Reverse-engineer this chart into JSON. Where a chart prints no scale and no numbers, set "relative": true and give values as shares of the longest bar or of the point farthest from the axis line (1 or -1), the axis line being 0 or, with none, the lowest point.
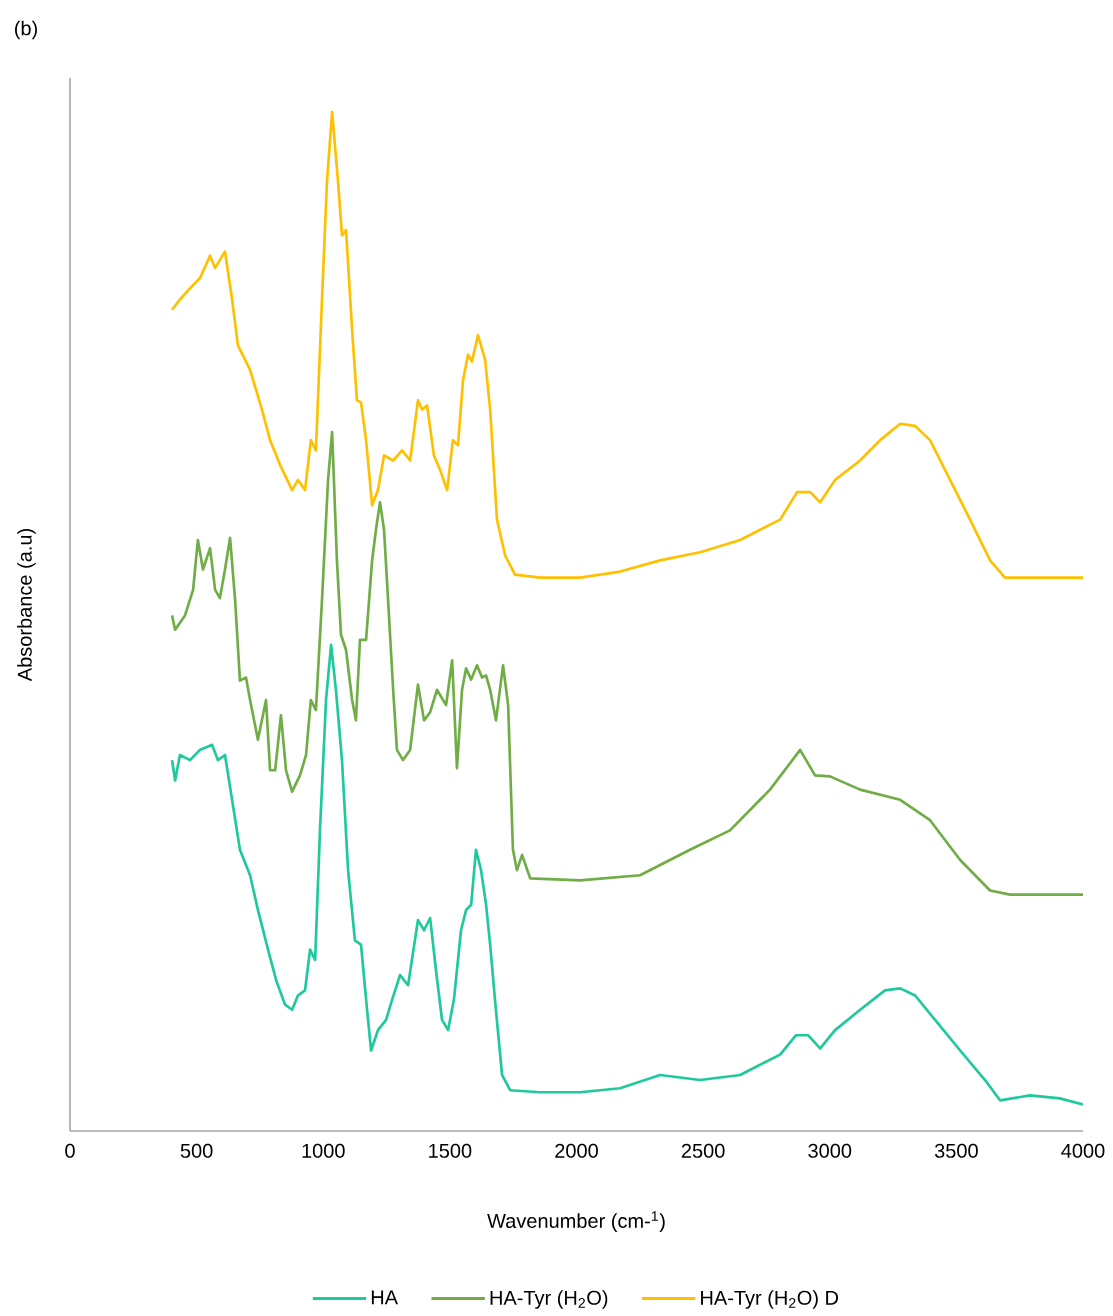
{
  "chart_data": {
    "type": "line",
    "title": "(b)",
    "xlabel": "Wavenumber (cm-$^{1}$)",
    "ylabel": "Absorbance (a.u)",
    "relative": true,
    "xlim": [
      0,
      4000
    ],
    "xticks": [
      0,
      500,
      1000,
      1500,
      2000,
      2500,
      3000,
      3500,
      4000
    ],
    "grid": false,
    "legend": "bottom",
    "marker": "none",
    "line_style": "solid",
    "series": [
      {
        "name": "HA",
        "color": "#1fc99c",
        "x": [
          403,
          415,
          434,
          474,
          513,
          561,
          584,
          612,
          640,
          671,
          711,
          742,
          782,
          814,
          849,
          877,
          900,
          928,
          948,
          968,
          987,
          1011,
          1031,
          1050,
          1074,
          1098,
          1125,
          1149,
          1173,
          1189,
          1216,
          1248,
          1272,
          1303,
          1335,
          1374,
          1398,
          1422,
          1445,
          1469,
          1493,
          1516,
          1544,
          1564,
          1584,
          1603,
          1623,
          1643,
          1659,
          1678,
          1706,
          1738,
          1856,
          2014,
          2172,
          2330,
          2488,
          2646,
          2804,
          2867,
          2914,
          2962,
          3021,
          3120,
          3218,
          3278,
          3337,
          3416,
          3515,
          3613,
          3673,
          3791,
          3909,
          4000
        ],
        "values": [
          0.364,
          0.344,
          0.369,
          0.364,
          0.374,
          0.379,
          0.364,
          0.369,
          0.325,
          0.276,
          0.251,
          0.217,
          0.178,
          0.148,
          0.124,
          0.119,
          0.133,
          0.138,
          0.178,
          0.168,
          0.295,
          0.423,
          0.477,
          0.433,
          0.364,
          0.256,
          0.187,
          0.183,
          0.119,
          0.079,
          0.099,
          0.109,
          0.129,
          0.153,
          0.143,
          0.207,
          0.197,
          0.209,
          0.158,
          0.109,
          0.099,
          0.129,
          0.197,
          0.217,
          0.222,
          0.276,
          0.256,
          0.222,
          0.183,
          0.129,
          0.055,
          0.04,
          0.038,
          0.038,
          0.042,
          0.055,
          0.05,
          0.055,
          0.075,
          0.094,
          0.094,
          0.081,
          0.099,
          0.119,
          0.138,
          0.14,
          0.133,
          0.109,
          0.079,
          0.05,
          0.03,
          0.035,
          0.032,
          0.026
        ]
      },
      {
        "name": "HA-Tyr (H$_{2}$O)",
        "color": "#70ad47",
        "x": [
          403,
          415,
          454,
          486,
          505,
          525,
          553,
          573,
          592,
          612,
          632,
          652,
          671,
          695,
          711,
          742,
          774,
          790,
          810,
          833,
          853,
          877,
          908,
          932,
          951,
          971,
          995,
          1019,
          1035,
          1054,
          1070,
          1090,
          1114,
          1129,
          1145,
          1169,
          1193,
          1208,
          1224,
          1240,
          1256,
          1276,
          1291,
          1315,
          1343,
          1374,
          1398,
          1422,
          1449,
          1485,
          1509,
          1528,
          1548,
          1564,
          1584,
          1607,
          1627,
          1643,
          1659,
          1682,
          1710,
          1730,
          1749,
          1765,
          1785,
          1817,
          2014,
          2251,
          2448,
          2606,
          2764,
          2883,
          2942,
          3001,
          3120,
          3278,
          3396,
          3515,
          3633,
          3712,
          4000
        ],
        "values": [
          0.506,
          0.492,
          0.506,
          0.531,
          0.58,
          0.551,
          0.572,
          0.531,
          0.523,
          0.551,
          0.582,
          0.521,
          0.442,
          0.445,
          0.423,
          0.384,
          0.423,
          0.354,
          0.354,
          0.408,
          0.354,
          0.333,
          0.349,
          0.369,
          0.423,
          0.413,
          0.521,
          0.639,
          0.686,
          0.56,
          0.487,
          0.472,
          0.423,
          0.403,
          0.482,
          0.482,
          0.56,
          0.59,
          0.617,
          0.59,
          0.521,
          0.433,
          0.374,
          0.364,
          0.374,
          0.438,
          0.403,
          0.411,
          0.433,
          0.418,
          0.462,
          0.356,
          0.433,
          0.454,
          0.443,
          0.457,
          0.445,
          0.447,
          0.433,
          0.403,
          0.457,
          0.418,
          0.276,
          0.256,
          0.271,
          0.248,
          0.246,
          0.251,
          0.276,
          0.295,
          0.335,
          0.374,
          0.349,
          0.348,
          0.335,
          0.325,
          0.305,
          0.266,
          0.236,
          0.232,
          0.232
        ]
      },
      {
        "name": "HA-Tyr (H$_{2}$O) D",
        "color": "#ffc000",
        "x": [
          403,
          434,
          474,
          513,
          553,
          573,
          612,
          640,
          663,
          711,
          758,
          790,
          829,
          877,
          900,
          928,
          951,
          971,
          995,
          1015,
          1035,
          1058,
          1074,
          1090,
          1114,
          1133,
          1149,
          1169,
          1193,
          1216,
          1240,
          1276,
          1311,
          1343,
          1374,
          1390,
          1410,
          1437,
          1461,
          1489,
          1512,
          1532,
          1552,
          1572,
          1587,
          1611,
          1639,
          1659,
          1686,
          1718,
          1757,
          1856,
          2014,
          2172,
          2330,
          2488,
          2646,
          2804,
          2871,
          2923,
          2962,
          3021,
          3120,
          3199,
          3278,
          3337,
          3396,
          3475,
          3554,
          3633,
          3692,
          3830,
          4000
        ],
        "values": [
          0.806,
          0.816,
          0.827,
          0.837,
          0.859,
          0.847,
          0.863,
          0.816,
          0.771,
          0.747,
          0.708,
          0.678,
          0.654,
          0.629,
          0.639,
          0.629,
          0.678,
          0.668,
          0.816,
          0.933,
          1.0,
          0.933,
          0.879,
          0.884,
          0.786,
          0.717,
          0.715,
          0.678,
          0.614,
          0.629,
          0.663,
          0.658,
          0.668,
          0.658,
          0.717,
          0.708,
          0.712,
          0.663,
          0.649,
          0.629,
          0.678,
          0.673,
          0.737,
          0.762,
          0.755,
          0.781,
          0.757,
          0.708,
          0.6,
          0.565,
          0.546,
          0.543,
          0.543,
          0.549,
          0.56,
          0.568,
          0.58,
          0.6,
          0.627,
          0.627,
          0.617,
          0.639,
          0.658,
          0.678,
          0.694,
          0.692,
          0.678,
          0.639,
          0.6,
          0.56,
          0.543,
          0.543,
          0.543
        ]
      }
    ]
  }
}
